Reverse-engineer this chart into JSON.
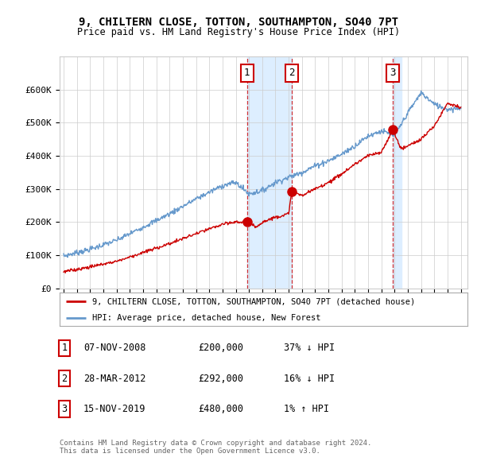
{
  "title": "9, CHILTERN CLOSE, TOTTON, SOUTHAMPTON, SO40 7PT",
  "subtitle": "Price paid vs. HM Land Registry's House Price Index (HPI)",
  "xlim": [
    1994.7,
    2025.5
  ],
  "ylim": [
    0,
    700000
  ],
  "yticks": [
    0,
    100000,
    200000,
    300000,
    400000,
    500000,
    600000
  ],
  "ytick_labels": [
    "£0",
    "£100K",
    "£200K",
    "£300K",
    "£400K",
    "£500K",
    "£600K"
  ],
  "xticks": [
    1995,
    1996,
    1997,
    1998,
    1999,
    2000,
    2001,
    2002,
    2003,
    2004,
    2005,
    2006,
    2007,
    2008,
    2009,
    2010,
    2011,
    2012,
    2013,
    2014,
    2015,
    2016,
    2017,
    2018,
    2019,
    2020,
    2021,
    2022,
    2023,
    2024,
    2025
  ],
  "sale_dates": [
    2008.85,
    2012.24,
    2019.87
  ],
  "sale_prices": [
    200000,
    292000,
    480000
  ],
  "sale_labels": [
    "1",
    "2",
    "3"
  ],
  "shaded_spans": [
    [
      2008.85,
      2012.24
    ]
  ],
  "legend_line1": "9, CHILTERN CLOSE, TOTTON, SOUTHAMPTON, SO40 7PT (detached house)",
  "legend_line2": "HPI: Average price, detached house, New Forest",
  "table_entries": [
    {
      "num": "1",
      "date": "07-NOV-2008",
      "price": "£200,000",
      "hpi": "37% ↓ HPI"
    },
    {
      "num": "2",
      "date": "28-MAR-2012",
      "price": "£292,000",
      "hpi": "16% ↓ HPI"
    },
    {
      "num": "3",
      "date": "15-NOV-2019",
      "price": "£480,000",
      "hpi": "1% ↑ HPI"
    }
  ],
  "footnote1": "Contains HM Land Registry data © Crown copyright and database right 2024.",
  "footnote2": "This data is licensed under the Open Government Licence v3.0.",
  "red_color": "#cc0000",
  "blue_color": "#6699cc",
  "shaded_color": "#ddeeff",
  "grid_color": "#cccccc",
  "background_color": "#ffffff",
  "hpi_knots_x": [
    1995,
    1997,
    1999,
    2001,
    2003,
    2005,
    2007,
    2008,
    2009,
    2010,
    2011,
    2012,
    2013,
    2014,
    2015,
    2016,
    2017,
    2018,
    2019,
    2020,
    2021,
    2022,
    2023,
    2024,
    2025
  ],
  "hpi_knots_y": [
    98000,
    118000,
    145000,
    185000,
    225000,
    270000,
    310000,
    320000,
    285000,
    295000,
    320000,
    335000,
    350000,
    370000,
    385000,
    405000,
    430000,
    460000,
    475000,
    460000,
    530000,
    590000,
    555000,
    540000,
    545000
  ],
  "red_knots_x": [
    1995,
    1997,
    1999,
    2001,
    2003,
    2005,
    2007,
    2008,
    2008.85,
    2009.5,
    2010,
    2011,
    2012,
    2012.24,
    2013,
    2014,
    2015,
    2016,
    2017,
    2018,
    2019,
    2019.87,
    2020.5,
    2021,
    2022,
    2023,
    2024,
    2025
  ],
  "red_knots_y": [
    50000,
    65000,
    82000,
    108000,
    135000,
    165000,
    193000,
    200000,
    200000,
    185000,
    200000,
    215000,
    225000,
    292000,
    280000,
    300000,
    320000,
    345000,
    375000,
    400000,
    410000,
    480000,
    420000,
    430000,
    450000,
    490000,
    560000,
    545000
  ]
}
